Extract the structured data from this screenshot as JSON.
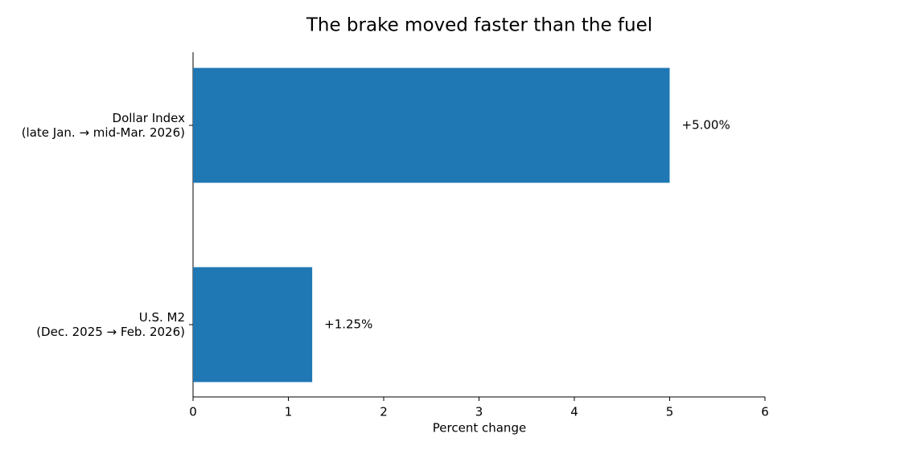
{
  "chart_data": {
    "type": "barh",
    "title": "The brake moved faster than the fuel",
    "categories": [
      [
        "Dollar Index",
        "(late Jan. → mid-Mar. 2026)"
      ],
      [
        "U.S. M2",
        "(Dec. 2025 → Feb. 2026)"
      ]
    ],
    "values": [
      5.0,
      1.25
    ],
    "value_labels": [
      "+5.00%",
      "+1.25%"
    ],
    "color": "#1f77b4",
    "x_label": "Percent change",
    "xlim": [
      0,
      6
    ],
    "xticks": [
      0,
      1,
      2,
      3,
      4,
      5,
      6
    ]
  }
}
